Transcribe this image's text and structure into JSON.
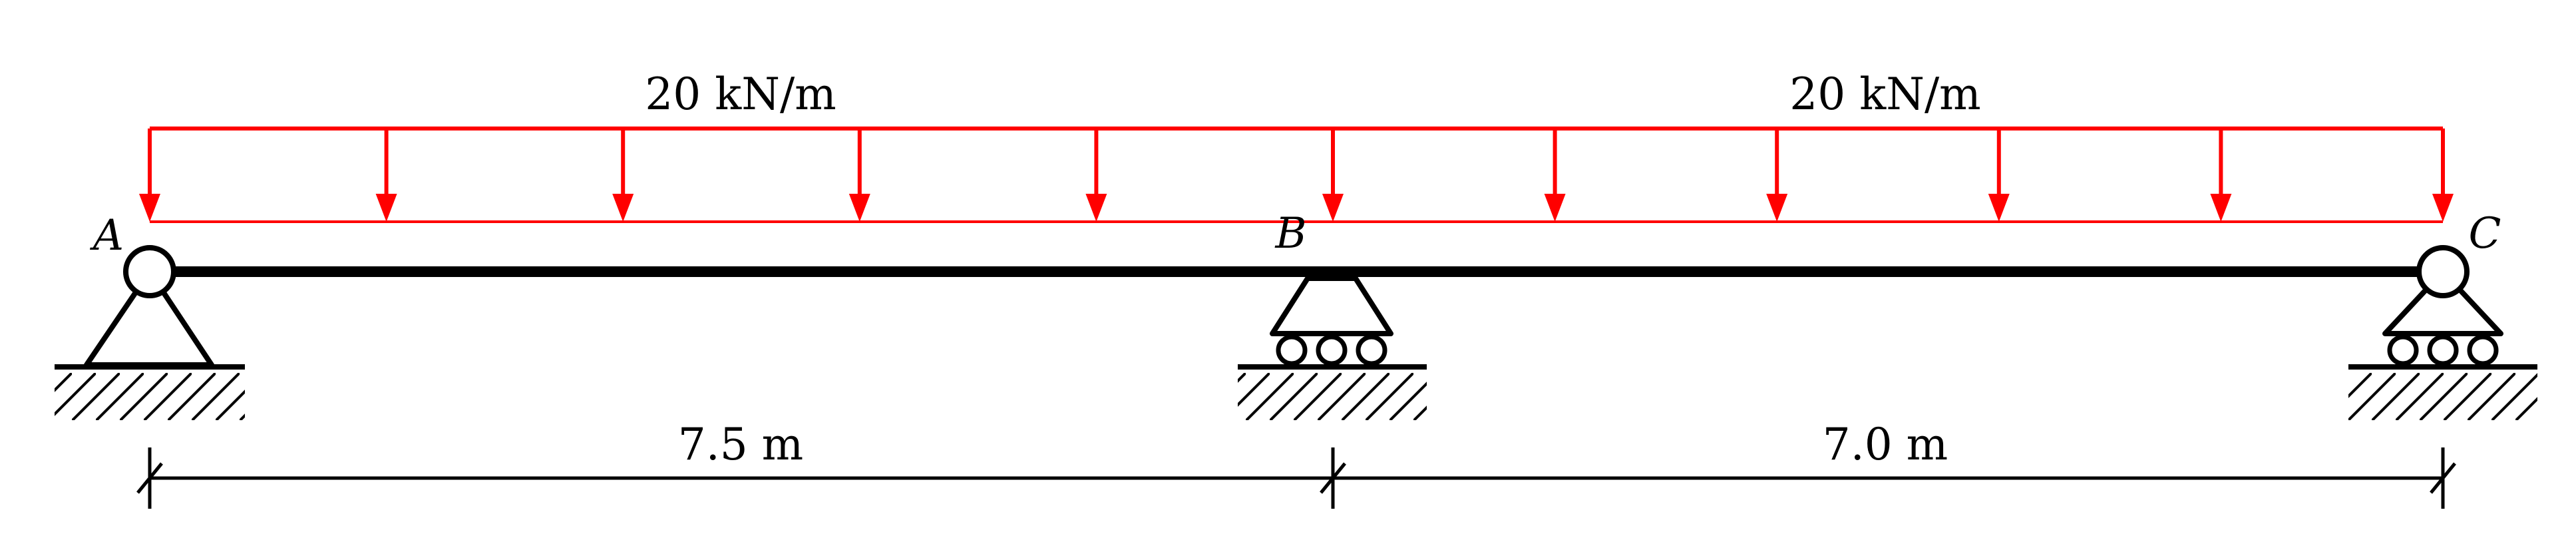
{
  "colors": {
    "load": "#ff0000",
    "structure": "#000000",
    "background": "#ffffff"
  },
  "nodes": [
    {
      "id": "A",
      "label": "A",
      "support": "pin"
    },
    {
      "id": "B",
      "label": "B",
      "support": "roller"
    },
    {
      "id": "C",
      "label": "C",
      "support": "roller"
    }
  ],
  "spans": [
    {
      "from": "A",
      "to": "B",
      "length_label": "7.5 m",
      "length_m": 7.5
    },
    {
      "from": "B",
      "to": "C",
      "length_label": "7.0 m",
      "length_m": 7.0
    }
  ],
  "loads": [
    {
      "type": "uniformly-distributed",
      "span": "A-B",
      "label": "20 kN/m",
      "magnitude_kN_per_m": 20
    },
    {
      "type": "uniformly-distributed",
      "span": "B-C",
      "label": "20 kN/m",
      "magnitude_kN_per_m": 20
    }
  ]
}
